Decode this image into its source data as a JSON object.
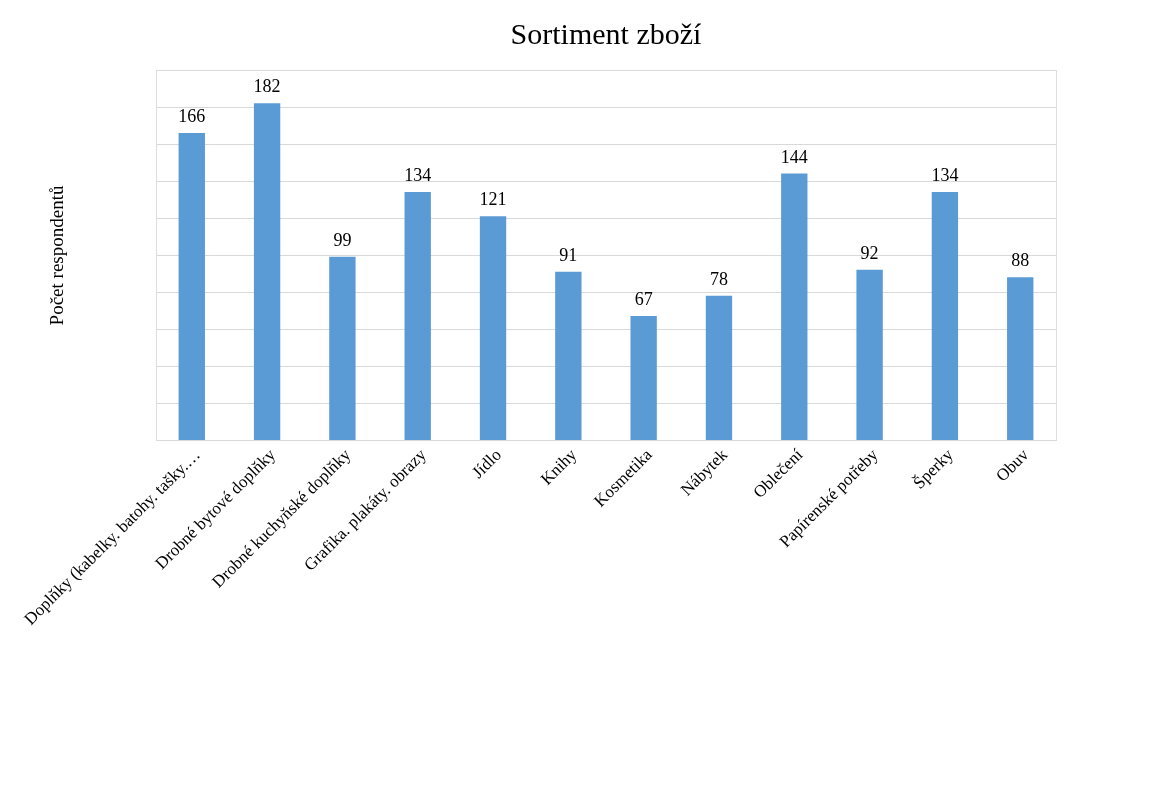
{
  "chart_data": {
    "type": "bar",
    "title": "Sortiment zboží",
    "ylabel": "Počet respondentů",
    "categories": [
      "Doplňky (kabelky. batohy. tašky.…",
      "Drobné bytové doplňky",
      "Drobné kuchyňské doplňky",
      "Grafika. plakáty. obrazy",
      "Jídlo",
      "Knihy",
      "Kosmetika",
      "Nábytek",
      "Oblečení",
      "Papírenské potřeby",
      "Šperky",
      "Obuv"
    ],
    "values": [
      166,
      182,
      99,
      134,
      121,
      91,
      67,
      78,
      144,
      92,
      134,
      88
    ],
    "color": "#5b9bd5",
    "data_labels": true,
    "grid": "y",
    "tick_labels": "x",
    "ylim": [
      0,
      200
    ]
  }
}
